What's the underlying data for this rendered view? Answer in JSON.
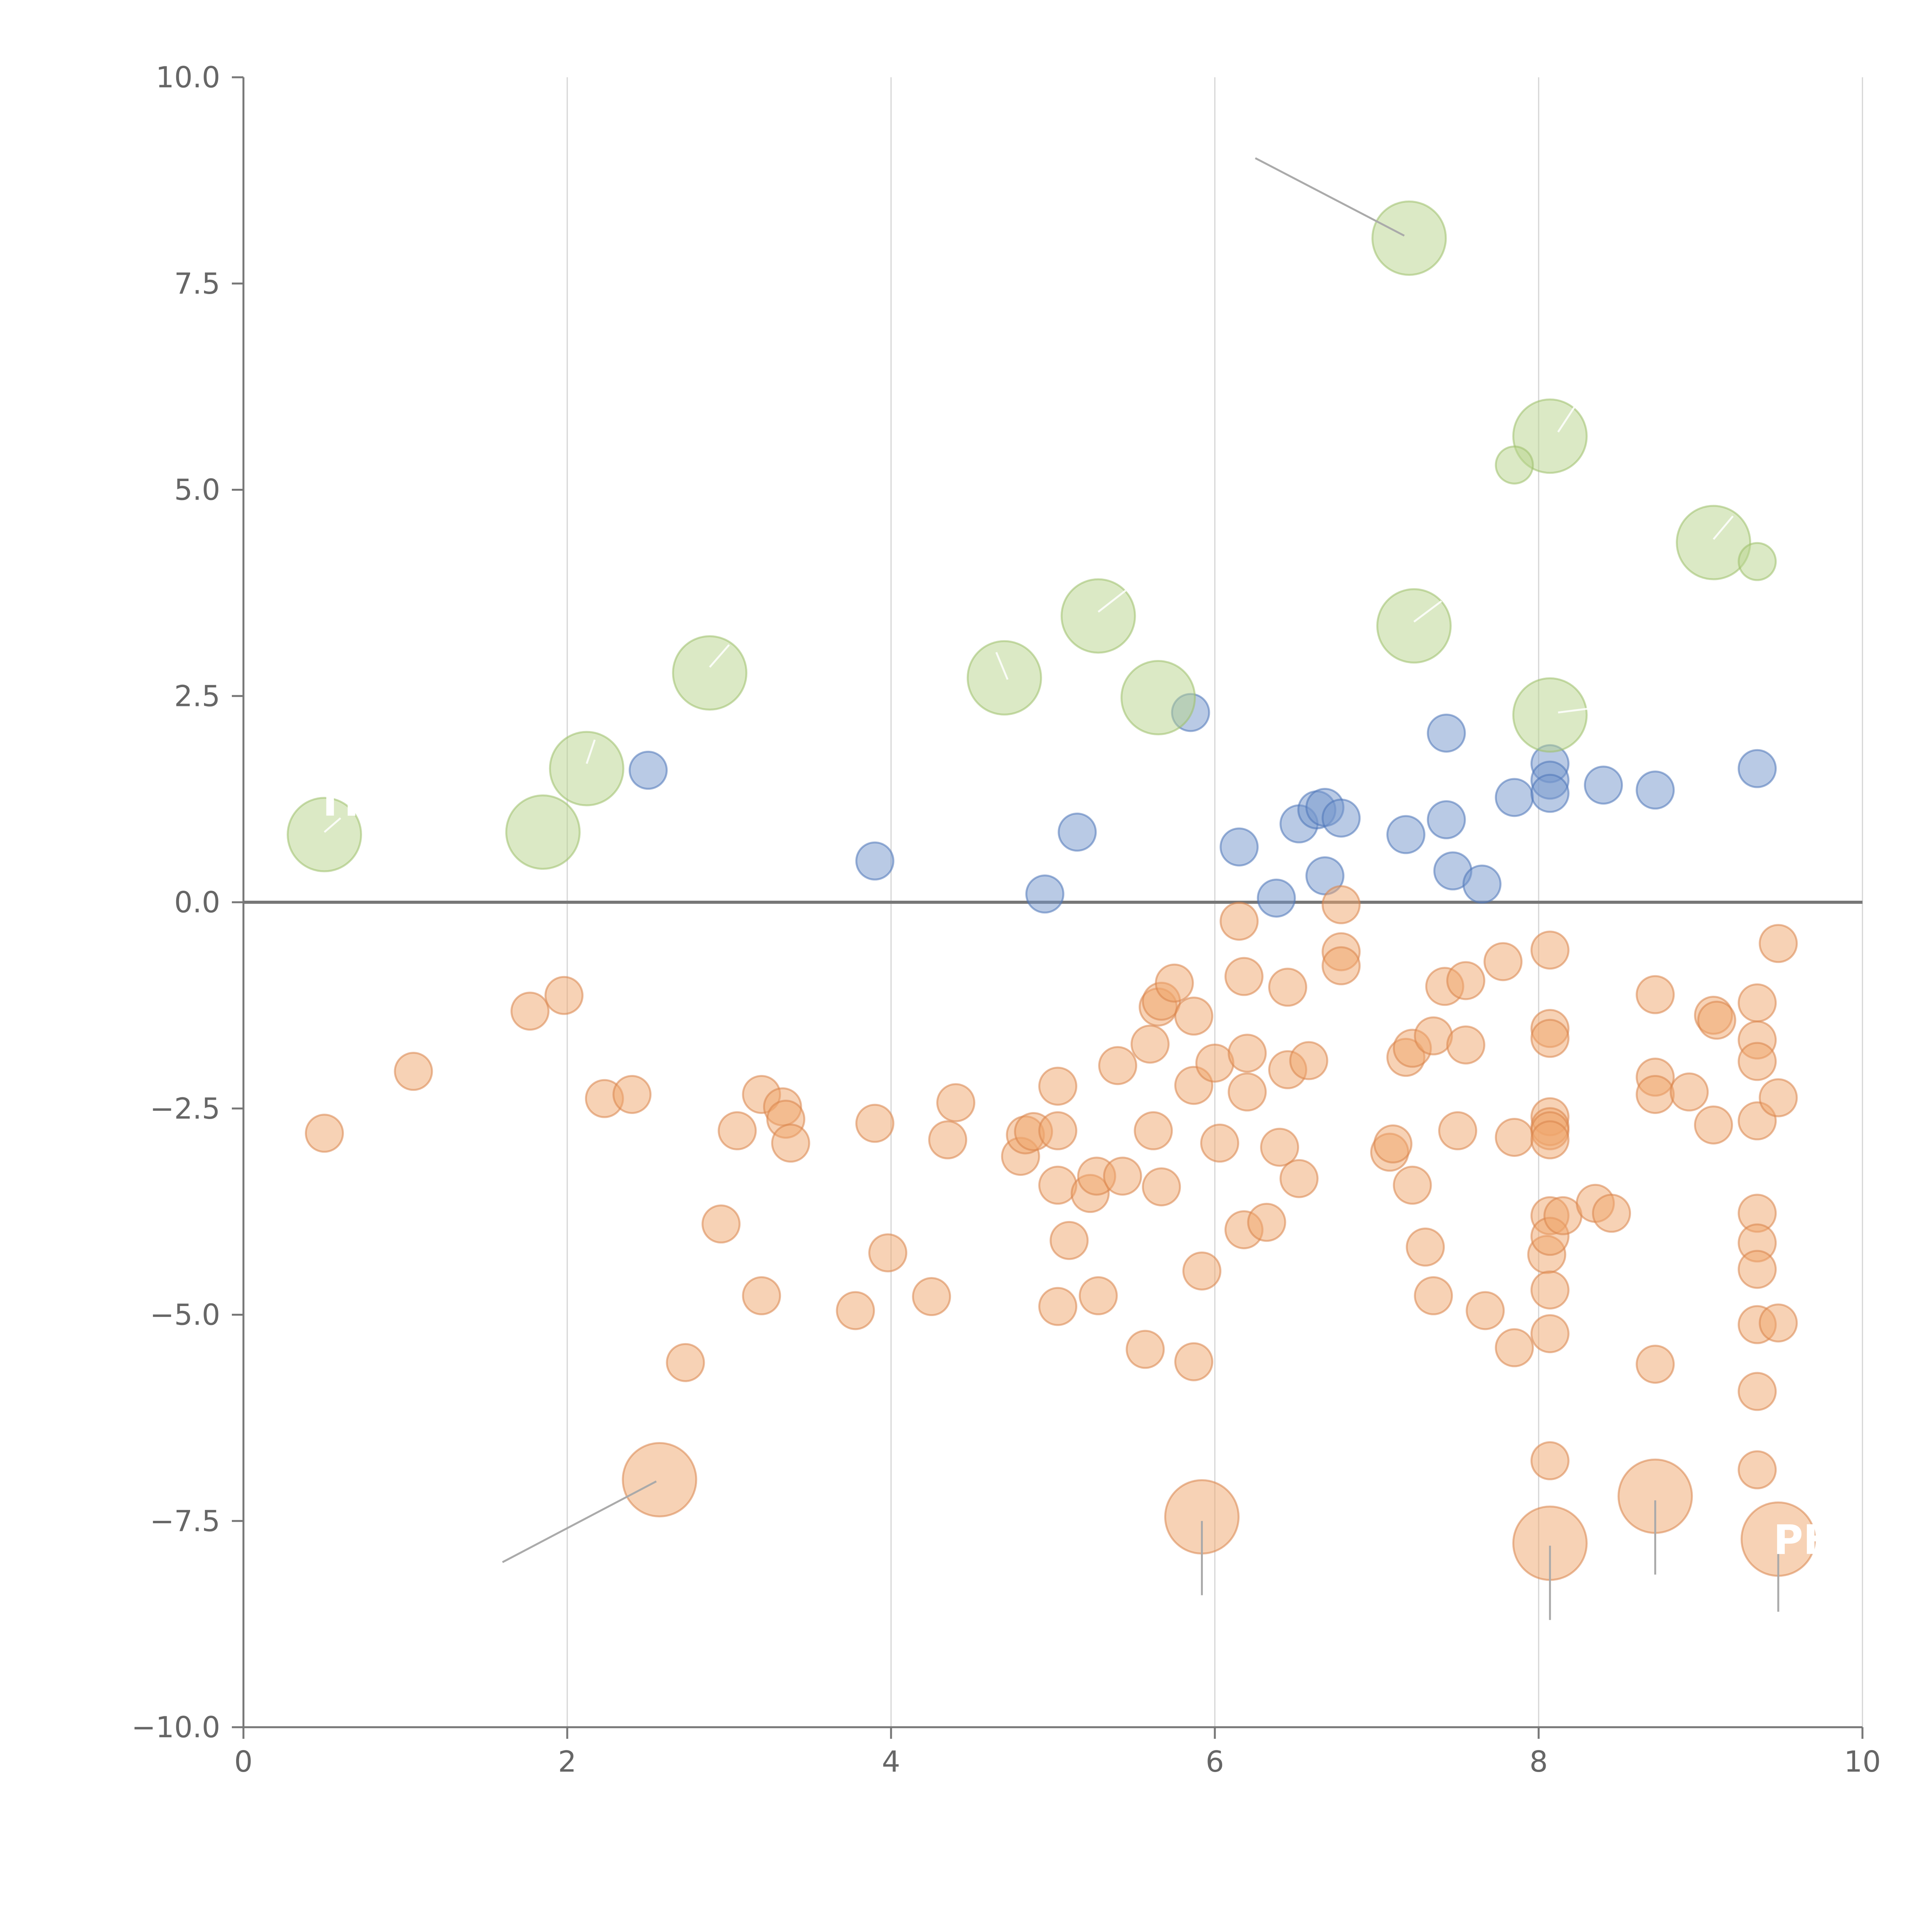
{
  "chart_data": {
    "type": "scatter",
    "title": "",
    "xlabel": "",
    "ylabel": "",
    "xlim": [
      0,
      10
    ],
    "ylim": [
      -10,
      10
    ],
    "x_ticks": [
      0,
      2,
      4,
      6,
      8,
      10
    ],
    "x_tick_labels": [
      "0",
      "2",
      "4",
      "6",
      "8",
      "10"
    ],
    "y_ticks": [
      -10,
      -7.5,
      -5,
      -2.5,
      0,
      2.5,
      5,
      7.5,
      10
    ],
    "y_tick_labels": [
      "−10.0",
      "−7.5",
      "−5.0",
      "−2.5",
      "0.0",
      "2.5",
      "5.0",
      "7.5",
      "10.0"
    ],
    "vertical_grid": true,
    "horizontal_grid": false,
    "zero_line": true,
    "legend": "none",
    "colors": {
      "positive_small": "#7396cc",
      "positive_small_edge": "#4d74b8",
      "positive_large": "#b7d38c",
      "positive_large_edge": "#9cc06a",
      "negative": "#efa56c",
      "negative_edge": "#d9844a",
      "grid": "#d4d4d4",
      "axis": "#777777",
      "text": "#666666"
    },
    "series": [
      {
        "name": "positive-small",
        "color": "#7396cc",
        "size": "small",
        "points": [
          [
            2.5,
            1.6
          ],
          [
            3.9,
            0.5
          ],
          [
            4.95,
            0.1
          ],
          [
            5.15,
            0.85
          ],
          [
            5.85,
            2.3
          ],
          [
            6.15,
            0.67
          ],
          [
            6.38,
            0.05
          ],
          [
            6.52,
            0.95
          ],
          [
            6.63,
            1.12
          ],
          [
            6.68,
            1.15
          ],
          [
            6.68,
            0.32
          ],
          [
            6.78,
            1.02
          ],
          [
            7.18,
            0.82
          ],
          [
            7.43,
            2.05
          ],
          [
            7.43,
            1.0
          ],
          [
            7.47,
            0.38
          ],
          [
            7.65,
            0.22
          ],
          [
            7.85,
            1.27
          ],
          [
            8.07,
            1.68
          ],
          [
            8.07,
            1.48
          ],
          [
            8.07,
            1.32
          ],
          [
            8.4,
            1.42
          ],
          [
            8.72,
            1.36
          ],
          [
            9.35,
            1.62
          ]
        ]
      },
      {
        "name": "positive-large",
        "color": "#b7d38c",
        "size": "large",
        "points": [
          [
            0.5,
            0.82
          ],
          [
            1.85,
            0.85
          ],
          [
            2.12,
            1.62
          ],
          [
            2.88,
            2.78
          ],
          [
            4.7,
            2.72
          ],
          [
            5.28,
            3.47
          ],
          [
            5.65,
            2.48
          ],
          [
            7.2,
            8.05
          ],
          [
            7.23,
            3.35
          ],
          [
            8.07,
            5.65
          ],
          [
            8.07,
            2.27
          ],
          [
            9.08,
            4.36
          ]
        ]
      },
      {
        "name": "positive-large-small",
        "color": "#b7d38c",
        "size": "small",
        "points": [
          [
            7.85,
            5.3
          ],
          [
            9.35,
            4.13
          ]
        ]
      },
      {
        "name": "negative-small",
        "color": "#efa56c",
        "size": "small",
        "points": [
          [
            0.5,
            -2.8
          ],
          [
            1.05,
            -2.05
          ],
          [
            1.77,
            -1.32
          ],
          [
            1.98,
            -1.13
          ],
          [
            2.23,
            -2.38
          ],
          [
            2.4,
            -2.33
          ],
          [
            2.73,
            -5.58
          ],
          [
            2.95,
            -3.9
          ],
          [
            3.05,
            -2.77
          ],
          [
            3.2,
            -2.33
          ],
          [
            3.2,
            -4.77
          ],
          [
            3.33,
            -2.48
          ],
          [
            3.35,
            -2.63
          ],
          [
            3.38,
            -2.92
          ],
          [
            3.78,
            -4.95
          ],
          [
            3.9,
            -2.68
          ],
          [
            3.98,
            -4.25
          ],
          [
            4.25,
            -4.78
          ],
          [
            4.35,
            -2.88
          ],
          [
            4.4,
            -2.43
          ],
          [
            4.8,
            -3.08
          ],
          [
            4.83,
            -2.82
          ],
          [
            4.88,
            -2.78
          ],
          [
            5.03,
            -2.23
          ],
          [
            5.03,
            -2.77
          ],
          [
            5.03,
            -3.43
          ],
          [
            5.03,
            -4.9
          ],
          [
            5.1,
            -4.1
          ],
          [
            5.23,
            -3.53
          ],
          [
            5.27,
            -3.32
          ],
          [
            5.28,
            -4.77
          ],
          [
            5.4,
            -1.98
          ],
          [
            5.43,
            -3.32
          ],
          [
            5.57,
            -5.42
          ],
          [
            5.6,
            -1.72
          ],
          [
            5.62,
            -2.77
          ],
          [
            5.65,
            -1.27
          ],
          [
            5.67,
            -1.2
          ],
          [
            5.67,
            -3.45
          ],
          [
            5.75,
            -0.98
          ],
          [
            5.87,
            -1.38
          ],
          [
            5.87,
            -2.22
          ],
          [
            5.87,
            -5.57
          ],
          [
            5.92,
            -4.47
          ],
          [
            6.0,
            -1.95
          ],
          [
            6.03,
            -2.92
          ],
          [
            6.15,
            -0.23
          ],
          [
            6.18,
            -3.97
          ],
          [
            6.18,
            -0.9
          ],
          [
            6.2,
            -1.83
          ],
          [
            6.2,
            -2.3
          ],
          [
            6.32,
            -3.88
          ],
          [
            6.4,
            -2.97
          ],
          [
            6.45,
            -1.03
          ],
          [
            6.45,
            -2.03
          ],
          [
            6.52,
            -3.35
          ],
          [
            6.58,
            -1.92
          ],
          [
            6.78,
            -0.03
          ],
          [
            6.78,
            -0.6
          ],
          [
            6.78,
            -0.77
          ],
          [
            7.08,
            -3.03
          ],
          [
            7.1,
            -2.93
          ],
          [
            7.18,
            -1.88
          ],
          [
            7.22,
            -1.77
          ],
          [
            7.22,
            -3.43
          ],
          [
            7.3,
            -4.18
          ],
          [
            7.35,
            -1.62
          ],
          [
            7.35,
            -4.77
          ],
          [
            7.42,
            -1.02
          ],
          [
            7.5,
            -2.77
          ],
          [
            7.55,
            -0.95
          ],
          [
            7.55,
            -1.73
          ],
          [
            7.67,
            -4.95
          ],
          [
            7.78,
            -0.72
          ],
          [
            7.85,
            -2.85
          ],
          [
            7.85,
            -5.4
          ],
          [
            8.05,
            -4.27
          ],
          [
            8.07,
            -0.58
          ],
          [
            8.07,
            -1.53
          ],
          [
            8.07,
            -1.65
          ],
          [
            8.07,
            -2.6
          ],
          [
            8.07,
            -2.72
          ],
          [
            8.07,
            -2.77
          ],
          [
            8.07,
            -2.88
          ],
          [
            8.07,
            -3.8
          ],
          [
            8.07,
            -4.05
          ],
          [
            8.07,
            -4.7
          ],
          [
            8.07,
            -5.23
          ],
          [
            8.07,
            -6.77
          ],
          [
            8.15,
            -3.8
          ],
          [
            8.35,
            -3.65
          ],
          [
            8.45,
            -3.77
          ],
          [
            8.72,
            -1.12
          ],
          [
            8.72,
            -2.12
          ],
          [
            8.72,
            -2.33
          ],
          [
            8.72,
            -5.6
          ],
          [
            8.93,
            -2.3
          ],
          [
            9.08,
            -1.37
          ],
          [
            9.1,
            -1.43
          ],
          [
            9.08,
            -2.7
          ],
          [
            9.35,
            -1.22
          ],
          [
            9.35,
            -1.67
          ],
          [
            9.35,
            -1.93
          ],
          [
            9.35,
            -2.65
          ],
          [
            9.35,
            -3.77
          ],
          [
            9.35,
            -4.13
          ],
          [
            9.35,
            -4.45
          ],
          [
            9.35,
            -5.12
          ],
          [
            9.35,
            -5.93
          ],
          [
            9.35,
            -6.88
          ],
          [
            9.48,
            -0.5
          ],
          [
            9.48,
            -2.37
          ],
          [
            9.48,
            -5.1
          ]
        ]
      },
      {
        "name": "negative-large",
        "color": "#efa56c",
        "size": "large",
        "points": [
          [
            2.57,
            -7.0
          ],
          [
            5.92,
            -7.45
          ],
          [
            8.07,
            -7.77
          ],
          [
            8.72,
            -7.2
          ],
          [
            9.48,
            -7.72
          ]
        ]
      }
    ],
    "annotations": [
      {
        "name": "leader-top-left",
        "from": [
          7.17,
          8.08
        ],
        "to": [
          6.25,
          9.02
        ],
        "style": "gray"
      },
      {
        "name": "leader-bottom-left",
        "from": [
          2.55,
          -7.02
        ],
        "to": [
          1.6,
          -8.0
        ],
        "style": "gray"
      },
      {
        "name": "leader-bottom-6",
        "from": [
          5.92,
          -7.5
        ],
        "to": [
          5.92,
          -8.4
        ],
        "style": "gray"
      },
      {
        "name": "leader-bottom-8",
        "from": [
          8.07,
          -7.8
        ],
        "to": [
          8.07,
          -8.7
        ],
        "style": "gray"
      },
      {
        "name": "leader-bottom-87",
        "from": [
          8.72,
          -7.25
        ],
        "to": [
          8.72,
          -8.15
        ],
        "style": "gray"
      },
      {
        "name": "leader-bottom-95",
        "from": [
          9.48,
          -7.75
        ],
        "to": [
          9.48,
          -8.6
        ],
        "style": "gray"
      },
      {
        "name": "leader-g-05",
        "from": [
          0.5,
          0.85
        ],
        "to": [
          0.6,
          1.02
        ],
        "style": "light"
      },
      {
        "name": "leader-g-212",
        "from": [
          2.12,
          1.68
        ],
        "to": [
          2.17,
          1.97
        ],
        "style": "light"
      },
      {
        "name": "leader-g-288",
        "from": [
          2.88,
          2.85
        ],
        "to": [
          3.0,
          3.12
        ],
        "style": "light"
      },
      {
        "name": "leader-g-47",
        "from": [
          4.72,
          2.7
        ],
        "to": [
          4.65,
          3.03
        ],
        "style": "light"
      },
      {
        "name": "leader-g-528",
        "from": [
          5.28,
          3.52
        ],
        "to": [
          5.45,
          3.78
        ],
        "style": "light"
      },
      {
        "name": "leader-g-723",
        "from": [
          7.23,
          3.4
        ],
        "to": [
          7.4,
          3.65
        ],
        "style": "light"
      },
      {
        "name": "leader-g-807",
        "from": [
          8.12,
          5.7
        ],
        "to": [
          8.22,
          6.0
        ],
        "style": "light"
      },
      {
        "name": "leader-g-807b",
        "from": [
          8.12,
          2.3
        ],
        "to": [
          8.32,
          2.35
        ],
        "style": "light"
      },
      {
        "name": "leader-g-908",
        "from": [
          9.08,
          4.4
        ],
        "to": [
          9.2,
          4.68
        ],
        "style": "light"
      }
    ],
    "point_labels": [
      {
        "text": "TR",
        "x": 0.45,
        "y": 1.05
      },
      {
        "text": "PH",
        "x": 9.45,
        "y": -7.9
      }
    ]
  }
}
